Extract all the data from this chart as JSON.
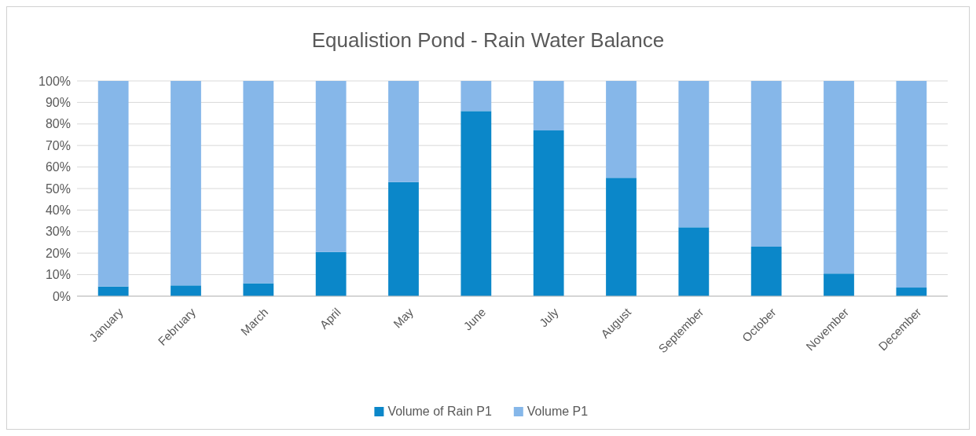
{
  "chart_data": {
    "type": "bar",
    "title": "Equalistion Pond - Rain Water Balance",
    "stacked": true,
    "categories": [
      "January",
      "February",
      "March",
      "April",
      "May",
      "June",
      "July",
      "August",
      "September",
      "October",
      "November",
      "December"
    ],
    "series": [
      {
        "name": "Volume of Rain P1",
        "color": "#0b87c9",
        "values": [
          4.5,
          5,
          6,
          20.5,
          53,
          86,
          77,
          55,
          32,
          23,
          10.5,
          4
        ]
      },
      {
        "name": "Volume P1",
        "color": "#86b7e9",
        "values": [
          95.5,
          95,
          94,
          79.5,
          47,
          14,
          23,
          45,
          68,
          77,
          89.5,
          96
        ]
      }
    ],
    "ylim": [
      0,
      100
    ],
    "yticks": [
      {
        "value": 0,
        "label": "0%"
      },
      {
        "value": 10,
        "label": "10%"
      },
      {
        "value": 20,
        "label": "20%"
      },
      {
        "value": 30,
        "label": "30%"
      },
      {
        "value": 40,
        "label": "40%"
      },
      {
        "value": 50,
        "label": "50%"
      },
      {
        "value": 60,
        "label": "60%"
      },
      {
        "value": 70,
        "label": "70%"
      },
      {
        "value": 80,
        "label": "80%"
      },
      {
        "value": 90,
        "label": "90%"
      },
      {
        "value": 100,
        "label": "100%"
      }
    ],
    "grid": "y",
    "legend": "bottom"
  }
}
